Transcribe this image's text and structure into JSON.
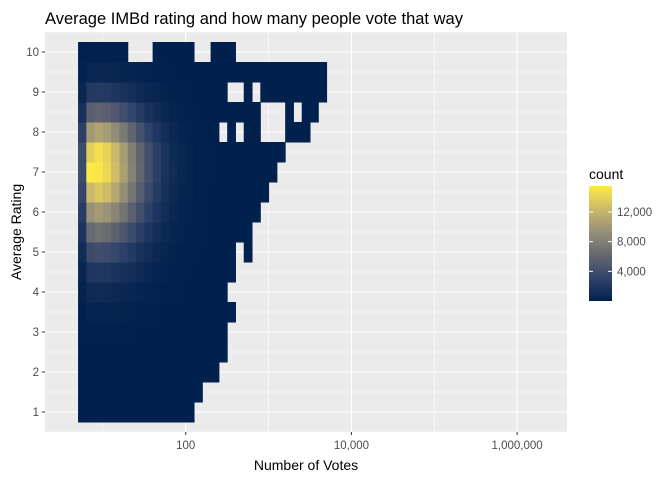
{
  "chart_data": {
    "type": "heatmap",
    "title": "Average IMBd rating and how many people vote that way",
    "xlabel": "Number of Votes",
    "ylabel": "Average Rating",
    "x_scale": "log10",
    "xlim": [
      2,
      4000000
    ],
    "ylim": [
      0.5,
      10.5
    ],
    "x_ticks": [
      {
        "value": 100,
        "label": "100"
      },
      {
        "value": 10000,
        "label": "10,000"
      },
      {
        "value": 1000000,
        "label": "1,000,000"
      }
    ],
    "y_ticks": [
      {
        "value": 1,
        "label": "1"
      },
      {
        "value": 2,
        "label": "2"
      },
      {
        "value": 3,
        "label": "3"
      },
      {
        "value": 4,
        "label": "4"
      },
      {
        "value": 5,
        "label": "5"
      },
      {
        "value": 6,
        "label": "6"
      },
      {
        "value": 7,
        "label": "7"
      },
      {
        "value": 8,
        "label": "8"
      },
      {
        "value": 9,
        "label": "9"
      },
      {
        "value": 10,
        "label": "10"
      }
    ],
    "grid": true,
    "panel_background": "#ebebeb",
    "bins": {
      "x_log_min": 0.7,
      "x_log_step": 0.1,
      "y_min": 0.75,
      "y_step": 0.5,
      "columns": 30,
      "rows": 19,
      "peak_count": 15500
    },
    "legend": {
      "title": "count",
      "position": "right",
      "breaks": [
        {
          "value": 4000,
          "label": "4,000"
        },
        {
          "value": 8000,
          "label": "8,000"
        },
        {
          "value": 12000,
          "label": "12,000"
        }
      ],
      "range": [
        0,
        15500
      ],
      "colors": [
        "#00204d",
        "#31446b",
        "#666870",
        "#958f78",
        "#cbba69",
        "#ffea46"
      ]
    }
  }
}
